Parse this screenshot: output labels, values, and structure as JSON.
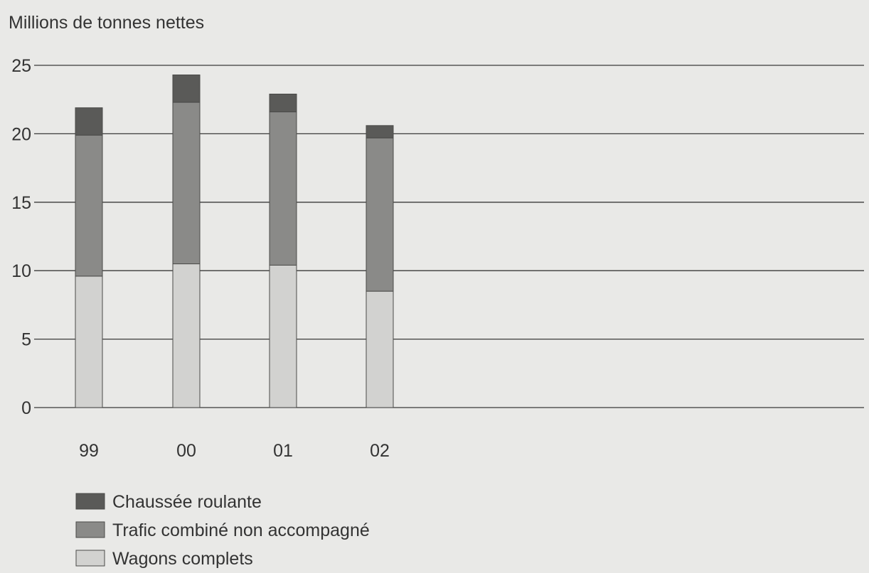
{
  "chart_data": {
    "type": "bar",
    "stacked": true,
    "ylabel": "Millions de tonnes nettes",
    "ylim": [
      0,
      25
    ],
    "yticks": [
      0,
      5,
      10,
      15,
      20,
      25
    ],
    "grid": true,
    "legend_position": "bottom-left",
    "categories": [
      "99",
      "00",
      "01",
      "02"
    ],
    "series": [
      {
        "name": "Wagons complets",
        "color": "#d2d2d0",
        "values": [
          9.6,
          10.5,
          10.4,
          8.5
        ]
      },
      {
        "name": "Trafic combiné non accompagné",
        "color": "#8a8a88",
        "values": [
          10.3,
          11.8,
          11.2,
          11.2
        ]
      },
      {
        "name": "Chaussée roulante",
        "color": "#5a5a58",
        "values": [
          2.0,
          2.0,
          1.3,
          0.9
        ]
      }
    ],
    "legend_order": [
      "Chaussée roulante",
      "Trafic combiné non accompagné",
      "Wagons complets"
    ]
  }
}
